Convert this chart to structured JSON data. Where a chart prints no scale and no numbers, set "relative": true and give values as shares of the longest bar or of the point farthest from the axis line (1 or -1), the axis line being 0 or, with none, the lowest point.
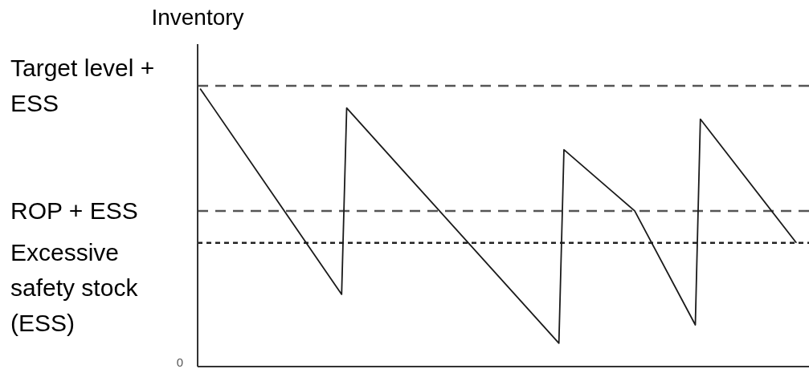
{
  "chart_data": {
    "type": "line",
    "ylabel": "Inventory",
    "relative": true,
    "categories": [
      null,
      null,
      null,
      null,
      null,
      null,
      null,
      null,
      null,
      null,
      null,
      null,
      null,
      null,
      null,
      null,
      null,
      null,
      null,
      null,
      null,
      null,
      null,
      null,
      null,
      null,
      null,
      null,
      null,
      null,
      null,
      null,
      null,
      null,
      null,
      null,
      null,
      null,
      null,
      null,
      null,
      null,
      null,
      null,
      null,
      null,
      null,
      null,
      null,
      null,
      null,
      null,
      null,
      null,
      null,
      null,
      null,
      null,
      null,
      null,
      null,
      null,
      null,
      null,
      null,
      null,
      null,
      null,
      null,
      null,
      null,
      null,
      null,
      null,
      null,
      null,
      null,
      null,
      null,
      null,
      null,
      null,
      null,
      null,
      null,
      null,
      null,
      null,
      null,
      null,
      null,
      null,
      null,
      null,
      null,
      null,
      null,
      null,
      null,
      null,
      null,
      null,
      null,
      null,
      null,
      null,
      null,
      null,
      null,
      null,
      null,
      null,
      null,
      null,
      null,
      null,
      null,
      null,
      null,
      null,
      null
    ],
    "values": [
      1.0,
      null,
      null,
      null,
      null,
      null,
      null,
      null,
      null,
      null,
      null,
      null,
      null,
      null,
      null,
      null,
      null,
      null,
      null,
      null,
      null,
      null,
      null,
      null,
      null,
      null,
      null,
      null,
      0.26,
      0.93,
      null,
      null,
      null,
      null,
      null,
      null,
      null,
      null,
      null,
      null,
      null,
      null,
      null,
      null,
      null,
      null,
      null,
      null,
      null,
      null,
      null,
      null,
      null,
      null,
      null,
      null,
      null,
      null,
      null,
      null,
      null,
      null,
      null,
      null,
      null,
      null,
      null,
      null,
      null,
      null,
      null,
      0.084,
      0.78,
      null,
      null,
      null,
      null,
      null,
      null,
      null,
      null,
      null,
      null,
      null,
      null,
      null,
      0.56,
      null,
      null,
      null,
      null,
      null,
      null,
      null,
      null,
      null,
      null,
      null,
      0.15,
      0.89,
      null,
      null,
      null,
      null,
      null,
      null,
      null,
      null,
      null,
      null,
      null,
      null,
      null,
      null,
      null,
      null,
      null,
      null,
      0.445,
      null,
      null
    ],
    "color": "#1a1a1a",
    "annotations": [
      "0"
    ],
    "ref_lines": [
      {
        "axis": "y",
        "value": 1.01,
        "label": "Target level + ESS",
        "line_style": "dashed",
        "color": "#555555"
      },
      {
        "axis": "y",
        "value": 0.56,
        "label": "ROP + ESS",
        "line_style": "dashed",
        "color": "#555555"
      },
      {
        "axis": "y",
        "value": 0.445,
        "label": "Excessive safety stock (ESS)",
        "line_style": "dotted",
        "color": "#222222"
      }
    ]
  }
}
